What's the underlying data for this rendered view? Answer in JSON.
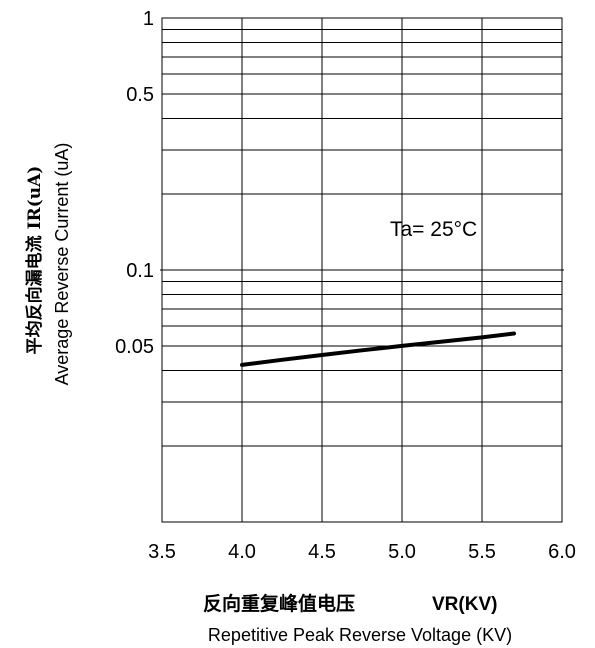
{
  "chart_data": {
    "type": "line",
    "title": "",
    "annotation": "Ta= 25°C",
    "xlabel_cn": "反向重复峰值电压",
    "xlabel_symbol": "VR(KV)",
    "xlabel_en": "Repetitive Peak Reverse Voltage (KV)",
    "ylabel_cn": "平均反向漏电流   IR(uA)",
    "ylabel_en": "Average Reverse  Current  (uA)",
    "x_scale": "linear",
    "y_scale": "log",
    "xlim": [
      3.5,
      6.0
    ],
    "ylim": [
      0.01,
      1
    ],
    "x_ticks": [
      "3.5",
      "4.0",
      "4.5",
      "5.0",
      "5.5",
      "6.0"
    ],
    "y_tick_labels": [
      {
        "value": 1,
        "label": "1"
      },
      {
        "value": 0.5,
        "label": "0.5"
      },
      {
        "value": 0.1,
        "label": "0.1"
      },
      {
        "value": 0.05,
        "label": "0.05"
      }
    ],
    "grid": true,
    "series": [
      {
        "x": [
          4.0,
          4.25,
          4.5,
          4.75,
          5.0,
          5.25,
          5.5,
          5.7
        ],
        "y": [
          0.042,
          0.044,
          0.046,
          0.048,
          0.05,
          0.052,
          0.054,
          0.056
        ]
      }
    ]
  }
}
